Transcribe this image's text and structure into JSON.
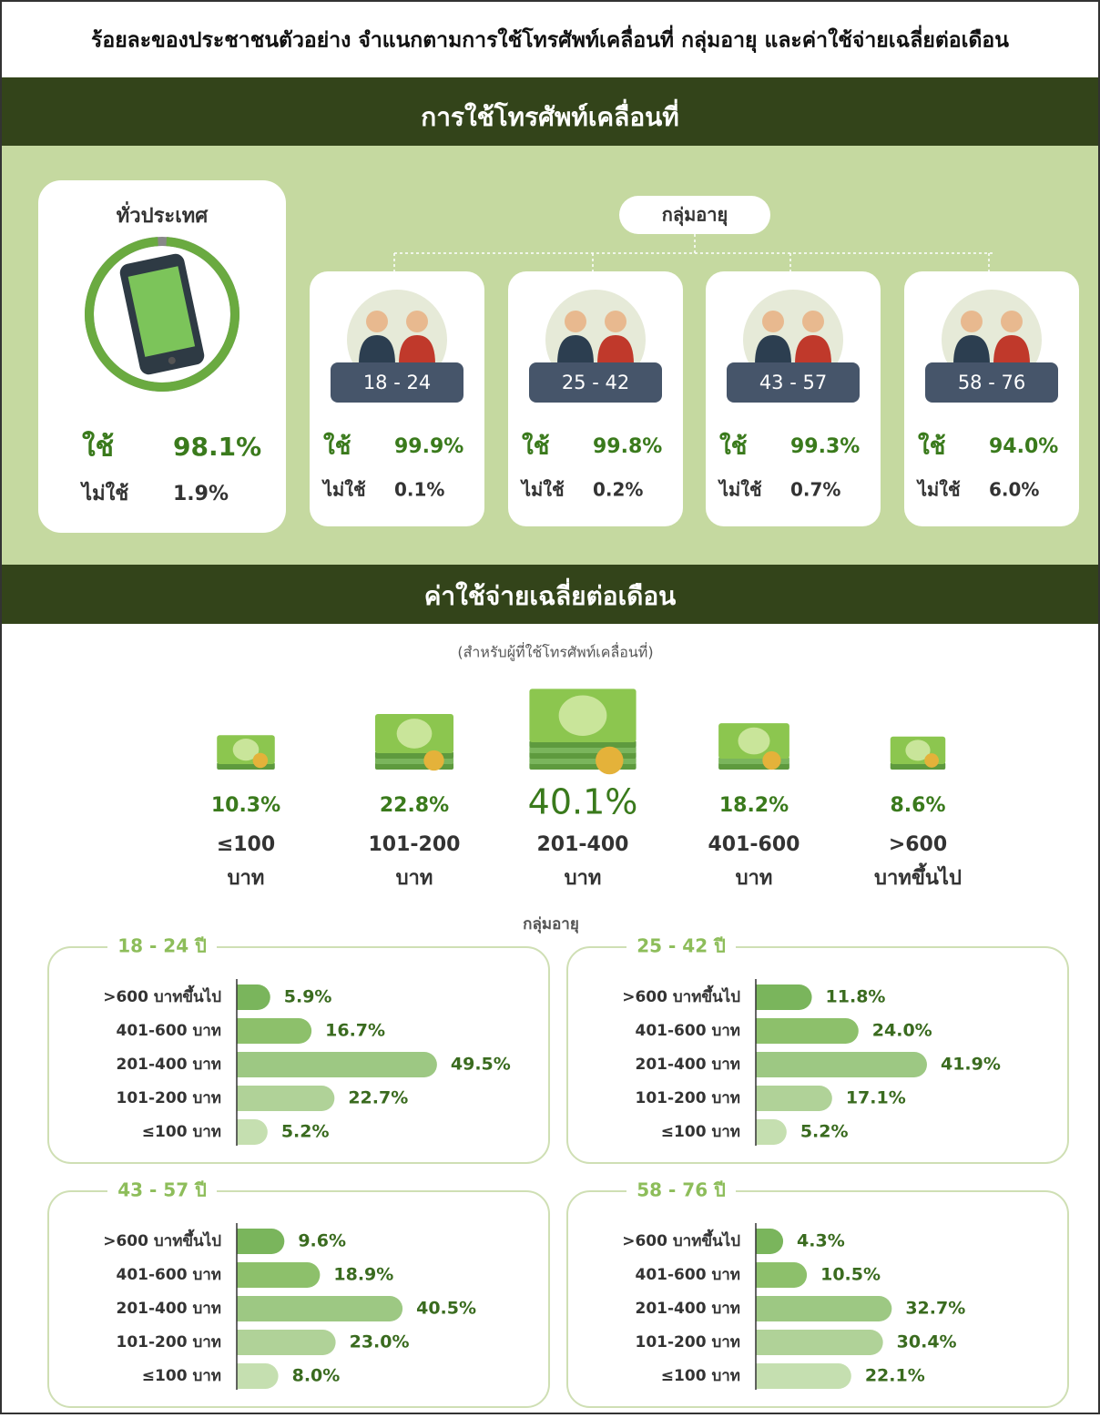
{
  "title": "ร้อยละของประชาชนตัวอย่าง จำแนกตามการใช้โทรศัพท์เคลื่อนที่ กลุ่มอายุ และค่าใช้จ่ายเฉลี่ยต่อเดือน",
  "usage": {
    "heading": "การใช้โทรศัพท์เคลื่อนที่",
    "use_label": "ใช้",
    "nonuse_label": "ไม่ใช้",
    "national": {
      "label": "ทั่วประเทศ",
      "use": 98.1,
      "use_text": "98.1%",
      "nonuse": 1.9,
      "nonuse_text": "1.9%"
    },
    "age_label": "กลุ่มอายุ",
    "groups": [
      {
        "age": "18 - 24",
        "use": 99.9,
        "use_text": "99.9%",
        "nonuse": 0.1,
        "nonuse_text": "0.1%"
      },
      {
        "age": "25 - 42",
        "use": 99.8,
        "use_text": "99.8%",
        "nonuse": 0.2,
        "nonuse_text": "0.2%"
      },
      {
        "age": "43 - 57",
        "use": 99.3,
        "use_text": "99.3%",
        "nonuse": 0.7,
        "nonuse_text": "0.7%"
      },
      {
        "age": "58 - 76",
        "use": 94.0,
        "use_text": "94.0%",
        "nonuse": 6.0,
        "nonuse_text": "6.0%"
      }
    ]
  },
  "spending": {
    "heading": "ค่าใช้จ่ายเฉลี่ยต่อเดือน",
    "note": "(สำหรับผู้ที่ใช้โทรศัพท์เคลื่อนที่)",
    "items": [
      {
        "value": 10.3,
        "value_label": "10.3%",
        "range": "≤100",
        "unit": "บาท"
      },
      {
        "value": 22.8,
        "value_label": "22.8%",
        "range": "101-200",
        "unit": "บาท"
      },
      {
        "value": 40.1,
        "value_label": "40.1%",
        "range": "201-400",
        "unit": "บาท"
      },
      {
        "value": 18.2,
        "value_label": "18.2%",
        "range": "401-600",
        "unit": "บาท"
      },
      {
        "value": 8.6,
        "value_label": "8.6%",
        "range": ">600",
        "unit": "บาทขึ้นไป"
      }
    ],
    "age_label": "กลุ่มอายุ"
  },
  "chart_data": [
    {
      "type": "bar",
      "orientation": "horizontal",
      "title": "18 - 24 ปี",
      "categories": [
        ">600 บาทขึ้นไป",
        "401-600 บาท",
        "201-400 บาท",
        "101-200 บาท",
        "≤100 บาท"
      ],
      "values": [
        5.9,
        16.7,
        49.5,
        22.7,
        5.2
      ],
      "value_labels": [
        "5.9%",
        "16.7%",
        "49.5%",
        "22.7%",
        "5.2%"
      ],
      "colors": [
        "#7ab55c",
        "#8dc06b",
        "#9dc883",
        "#b0d298",
        "#c5dfb0"
      ]
    },
    {
      "type": "bar",
      "orientation": "horizontal",
      "title": "25 - 42 ปี",
      "categories": [
        ">600 บาทขึ้นไป",
        "401-600 บาท",
        "201-400 บาท",
        "101-200 บาท",
        "≤100 บาท"
      ],
      "values": [
        11.8,
        24.0,
        41.9,
        17.1,
        5.2
      ],
      "value_labels": [
        "11.8%",
        "24.0%",
        "41.9%",
        "17.1%",
        "5.2%"
      ],
      "colors": [
        "#7ab55c",
        "#8dc06b",
        "#9dc883",
        "#b0d298",
        "#c5dfb0"
      ]
    },
    {
      "type": "bar",
      "orientation": "horizontal",
      "title": "43 - 57 ปี",
      "categories": [
        ">600 บาทขึ้นไป",
        "401-600 บาท",
        "201-400 บาท",
        "101-200 บาท",
        "≤100 บาท"
      ],
      "values": [
        9.6,
        18.9,
        40.5,
        23.0,
        8.0
      ],
      "value_labels": [
        "9.6%",
        "18.9%",
        "40.5%",
        "23.0%",
        "8.0%"
      ],
      "colors": [
        "#7ab55c",
        "#8dc06b",
        "#9dc883",
        "#b0d298",
        "#c5dfb0"
      ]
    },
    {
      "type": "bar",
      "orientation": "horizontal",
      "title": "58 - 76 ปี",
      "categories": [
        ">600 บาทขึ้นไป",
        "401-600 บาท",
        "201-400 บาท",
        "101-200 บาท",
        "≤100 บาท"
      ],
      "values": [
        4.3,
        10.5,
        32.7,
        30.4,
        22.1
      ],
      "value_labels": [
        "4.3%",
        "10.5%",
        "32.7%",
        "30.4%",
        "22.1%"
      ],
      "colors": [
        "#7ab55c",
        "#8dc06b",
        "#9dc883",
        "#b0d298",
        "#c5dfb0"
      ]
    }
  ]
}
